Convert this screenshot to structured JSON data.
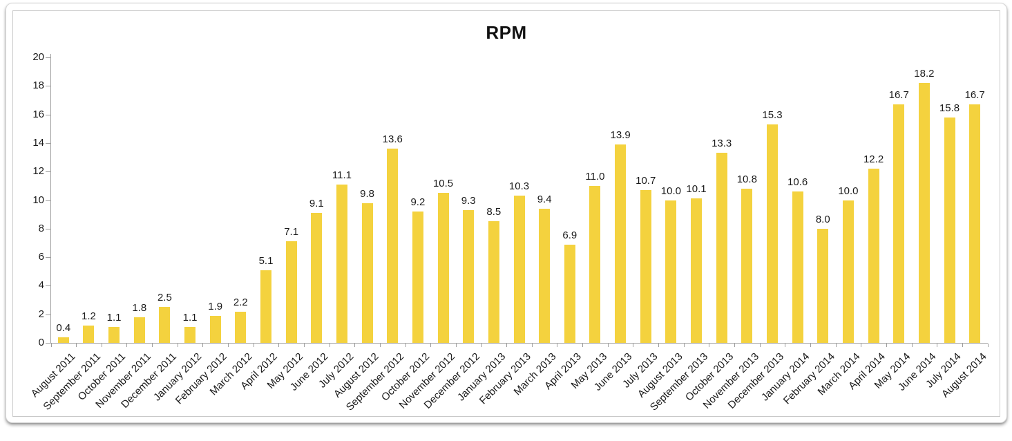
{
  "chart_data": {
    "type": "bar",
    "title": "RPM",
    "categories": [
      "August 2011",
      "September 2011",
      "October 2011",
      "November 2011",
      "December 2011",
      "January 2012",
      "February 2012",
      "March 2012",
      "April 2012",
      "May 2012",
      "June 2012",
      "July 2012",
      "August 2012",
      "September 2012",
      "October 2012",
      "November 2012",
      "December 2012",
      "January 2013",
      "February 2013",
      "March 2013",
      "April 2013",
      "May 2013",
      "June 2013",
      "July 2013",
      "August 2013",
      "September 2013",
      "October 2013",
      "November 2013",
      "December 2013",
      "January 2014",
      "February 2014",
      "March 2014",
      "April 2014",
      "May 2014",
      "June 2014",
      "July 2014",
      "August 2014"
    ],
    "values": [
      0.4,
      1.2,
      1.1,
      1.8,
      2.5,
      1.1,
      1.9,
      2.2,
      5.1,
      7.1,
      9.1,
      11.1,
      9.8,
      13.6,
      9.2,
      10.5,
      9.3,
      8.5,
      10.3,
      9.4,
      6.9,
      11.0,
      13.9,
      10.7,
      10.0,
      10.1,
      13.3,
      10.8,
      15.3,
      10.6,
      8.0,
      10.0,
      12.2,
      16.7,
      18.2,
      15.8,
      16.7
    ],
    "value_label_decimals": 1,
    "xlabel": "",
    "ylabel": "",
    "ylim": [
      0,
      20
    ],
    "yticks": [
      0,
      2,
      4,
      6,
      8,
      10,
      12,
      14,
      16,
      18,
      20
    ],
    "grid": false,
    "legend": null,
    "bar_color": "#F4D23E",
    "axis_color": "#9E9E9E",
    "text_color": "#1A1A1A",
    "background_color": "#FFFFFF"
  }
}
